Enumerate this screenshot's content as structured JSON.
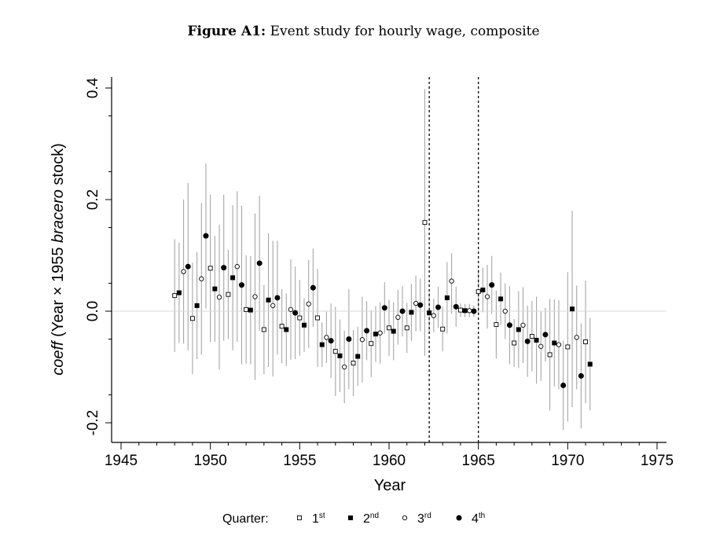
{
  "title": {
    "label": "Figure A1:",
    "text": "Event study for hourly wage, composite"
  },
  "chart_data": {
    "type": "scatter",
    "title": "Figure A1: Event study for hourly wage, composite",
    "xlabel": "Year",
    "ylabel": {
      "italic_part": "coeff",
      "middle_part": " (Year × 1955 ",
      "italic_part2": "bracero",
      "end_part": " stock)"
    },
    "xlim": [
      1945,
      1975
    ],
    "ylim": [
      -0.23,
      0.42
    ],
    "x_ticks": [
      1945,
      1950,
      1955,
      1960,
      1965,
      1970,
      1975
    ],
    "x_tick_labels": [
      "1945",
      "1950",
      "1955",
      "1960",
      "1965",
      "1970",
      "1975"
    ],
    "y_ticks": [
      -0.2,
      0.0,
      0.2,
      0.4
    ],
    "y_tick_labels": [
      "-0.2",
      "0.0",
      "0.2",
      "0.4"
    ],
    "reference_line_y": 0,
    "vertical_lines": [
      1962.25,
      1965
    ],
    "grid": false,
    "error_bars": true,
    "legend": {
      "title": "Quarter:",
      "placement": "bottom",
      "entries": [
        {
          "base": "1",
          "sup": "st",
          "marker": "open-square"
        },
        {
          "base": "2",
          "sup": "nd",
          "marker": "filled-square"
        },
        {
          "base": "3",
          "sup": "rd",
          "marker": "open-circle"
        },
        {
          "base": "4",
          "sup": "th",
          "marker": "filled-circle"
        }
      ]
    },
    "points": [
      {
        "year": 1948.0,
        "q": 1,
        "y": 0.028,
        "lo": -0.073,
        "hi": 0.129
      },
      {
        "year": 1948.25,
        "q": 2,
        "y": 0.033,
        "lo": -0.057,
        "hi": 0.123
      },
      {
        "year": 1948.5,
        "q": 3,
        "y": 0.071,
        "lo": -0.058,
        "hi": 0.2
      },
      {
        "year": 1948.75,
        "q": 4,
        "y": 0.08,
        "lo": -0.07,
        "hi": 0.23
      },
      {
        "year": 1949.0,
        "q": 1,
        "y": -0.013,
        "lo": -0.113,
        "hi": 0.087
      },
      {
        "year": 1949.25,
        "q": 2,
        "y": 0.01,
        "lo": -0.086,
        "hi": 0.106
      },
      {
        "year": 1949.5,
        "q": 3,
        "y": 0.058,
        "lo": -0.078,
        "hi": 0.194
      },
      {
        "year": 1949.75,
        "q": 4,
        "y": 0.135,
        "lo": 0.005,
        "hi": 0.265
      },
      {
        "year": 1950.0,
        "q": 1,
        "y": 0.077,
        "lo": -0.055,
        "hi": 0.209
      },
      {
        "year": 1950.25,
        "q": 2,
        "y": 0.04,
        "lo": -0.055,
        "hi": 0.135
      },
      {
        "year": 1950.5,
        "q": 3,
        "y": 0.025,
        "lo": -0.105,
        "hi": 0.155
      },
      {
        "year": 1950.75,
        "q": 4,
        "y": 0.078,
        "lo": -0.053,
        "hi": 0.209
      },
      {
        "year": 1951.0,
        "q": 1,
        "y": 0.03,
        "lo": -0.05,
        "hi": 0.11
      },
      {
        "year": 1951.25,
        "q": 2,
        "y": 0.06,
        "lo": -0.07,
        "hi": 0.19
      },
      {
        "year": 1951.5,
        "q": 3,
        "y": 0.08,
        "lo": -0.055,
        "hi": 0.215
      },
      {
        "year": 1951.75,
        "q": 4,
        "y": 0.047,
        "lo": -0.095,
        "hi": 0.189
      },
      {
        "year": 1952.0,
        "q": 1,
        "y": 0.003,
        "lo": -0.094,
        "hi": 0.1
      },
      {
        "year": 1952.25,
        "q": 2,
        "y": 0.002,
        "lo": -0.095,
        "hi": 0.099
      },
      {
        "year": 1952.5,
        "q": 3,
        "y": 0.026,
        "lo": -0.123,
        "hi": 0.175
      },
      {
        "year": 1952.75,
        "q": 4,
        "y": 0.086,
        "lo": -0.035,
        "hi": 0.207
      },
      {
        "year": 1953.0,
        "q": 1,
        "y": -0.033,
        "lo": -0.113,
        "hi": 0.047
      },
      {
        "year": 1953.25,
        "q": 2,
        "y": 0.02,
        "lo": -0.1,
        "hi": 0.14
      },
      {
        "year": 1953.5,
        "q": 3,
        "y": 0.01,
        "lo": -0.117,
        "hi": 0.126
      },
      {
        "year": 1953.75,
        "q": 4,
        "y": 0.024,
        "lo": -0.078,
        "hi": 0.126
      },
      {
        "year": 1954.0,
        "q": 1,
        "y": -0.027,
        "lo": -0.093,
        "hi": 0.039
      },
      {
        "year": 1954.25,
        "q": 2,
        "y": -0.033,
        "lo": -0.098,
        "hi": 0.032
      },
      {
        "year": 1954.5,
        "q": 3,
        "y": 0.003,
        "lo": -0.087,
        "hi": 0.093
      },
      {
        "year": 1954.75,
        "q": 4,
        "y": -0.003,
        "lo": -0.086,
        "hi": 0.08
      },
      {
        "year": 1955.0,
        "q": 1,
        "y": -0.012,
        "lo": -0.08,
        "hi": 0.056
      },
      {
        "year": 1955.25,
        "q": 2,
        "y": -0.025,
        "lo": -0.073,
        "hi": 0.023
      },
      {
        "year": 1955.5,
        "q": 3,
        "y": 0.013,
        "lo": -0.066,
        "hi": 0.092
      },
      {
        "year": 1955.75,
        "q": 4,
        "y": 0.042,
        "lo": -0.028,
        "hi": 0.112
      },
      {
        "year": 1956.0,
        "q": 1,
        "y": -0.012,
        "lo": -0.1,
        "hi": 0.076
      },
      {
        "year": 1956.25,
        "q": 2,
        "y": -0.06,
        "lo": -0.1,
        "hi": -0.02
      },
      {
        "year": 1956.5,
        "q": 3,
        "y": -0.047,
        "lo": -0.093,
        "hi": -0.001
      },
      {
        "year": 1956.75,
        "q": 4,
        "y": -0.053,
        "lo": -0.12,
        "hi": 0.014
      },
      {
        "year": 1957.0,
        "q": 1,
        "y": -0.072,
        "lo": -0.152,
        "hi": 0.008
      },
      {
        "year": 1957.25,
        "q": 2,
        "y": -0.08,
        "lo": -0.145,
        "hi": -0.015
      },
      {
        "year": 1957.5,
        "q": 3,
        "y": -0.1,
        "lo": -0.165,
        "hi": -0.035
      },
      {
        "year": 1957.75,
        "q": 4,
        "y": -0.05,
        "lo": -0.14,
        "hi": 0.04
      },
      {
        "year": 1958.0,
        "q": 1,
        "y": -0.093,
        "lo": -0.152,
        "hi": -0.034
      },
      {
        "year": 1958.25,
        "q": 2,
        "y": -0.081,
        "lo": -0.134,
        "hi": -0.028
      },
      {
        "year": 1958.5,
        "q": 3,
        "y": -0.051,
        "lo": -0.128,
        "hi": 0.026
      },
      {
        "year": 1958.75,
        "q": 4,
        "y": -0.035,
        "lo": -0.088,
        "hi": 0.018
      },
      {
        "year": 1959.0,
        "q": 1,
        "y": -0.058,
        "lo": -0.118,
        "hi": 0.002
      },
      {
        "year": 1959.25,
        "q": 2,
        "y": -0.041,
        "lo": -0.091,
        "hi": 0.009
      },
      {
        "year": 1959.5,
        "q": 3,
        "y": -0.039,
        "lo": -0.094,
        "hi": 0.016
      },
      {
        "year": 1959.75,
        "q": 4,
        "y": 0.006,
        "lo": -0.04,
        "hi": 0.052
      },
      {
        "year": 1960.0,
        "q": 1,
        "y": -0.03,
        "lo": -0.08,
        "hi": 0.02
      },
      {
        "year": 1960.25,
        "q": 2,
        "y": -0.036,
        "lo": -0.088,
        "hi": 0.016
      },
      {
        "year": 1960.5,
        "q": 3,
        "y": -0.011,
        "lo": -0.06,
        "hi": 0.038
      },
      {
        "year": 1960.75,
        "q": 4,
        "y": 0.0,
        "lo": -0.045,
        "hi": 0.045
      },
      {
        "year": 1961.0,
        "q": 1,
        "y": -0.03,
        "lo": -0.075,
        "hi": 0.015
      },
      {
        "year": 1961.25,
        "q": 2,
        "y": -0.002,
        "lo": -0.053,
        "hi": 0.049
      },
      {
        "year": 1961.5,
        "q": 3,
        "y": 0.014,
        "lo": -0.036,
        "hi": 0.064
      },
      {
        "year": 1961.75,
        "q": 4,
        "y": 0.011,
        "lo": -0.036,
        "hi": 0.058
      },
      {
        "year": 1962.0,
        "q": 1,
        "y": 0.159,
        "lo": -0.08,
        "hi": 0.398
      },
      {
        "year": 1962.25,
        "q": 2,
        "y": -0.003,
        "lo": -0.04,
        "hi": 0.034
      },
      {
        "year": 1962.5,
        "q": 3,
        "y": -0.008,
        "lo": -0.038,
        "hi": 0.022
      },
      {
        "year": 1962.75,
        "q": 4,
        "y": 0.007,
        "lo": -0.03,
        "hi": 0.044
      },
      {
        "year": 1963.0,
        "q": 1,
        "y": -0.032,
        "lo": -0.072,
        "hi": 0.008
      },
      {
        "year": 1963.25,
        "q": 2,
        "y": 0.024,
        "lo": -0.04,
        "hi": 0.088
      },
      {
        "year": 1963.5,
        "q": 3,
        "y": 0.054,
        "lo": -0.005,
        "hi": 0.104
      },
      {
        "year": 1963.75,
        "q": 4,
        "y": 0.008,
        "lo": -0.028,
        "hi": 0.044
      },
      {
        "year": 1964.0,
        "q": 1,
        "y": 0.002,
        "lo": -0.01,
        "hi": 0.014
      },
      {
        "year": 1964.25,
        "q": 2,
        "y": 0.001,
        "lo": -0.011,
        "hi": 0.013
      },
      {
        "year": 1964.5,
        "q": 3,
        "y": 0.001,
        "lo": -0.011,
        "hi": 0.013
      },
      {
        "year": 1964.75,
        "q": 4,
        "y": 0.0,
        "lo": -0.01,
        "hi": 0.01
      },
      {
        "year": 1965.0,
        "q": 1,
        "y": 0.035,
        "lo": -0.005,
        "hi": 0.075
      },
      {
        "year": 1965.25,
        "q": 2,
        "y": 0.038,
        "lo": -0.002,
        "hi": 0.078
      },
      {
        "year": 1965.5,
        "q": 3,
        "y": 0.026,
        "lo": -0.031,
        "hi": 0.083
      },
      {
        "year": 1965.75,
        "q": 4,
        "y": 0.047,
        "lo": -0.005,
        "hi": 0.099
      },
      {
        "year": 1966.0,
        "q": 1,
        "y": -0.024,
        "lo": -0.085,
        "hi": 0.037
      },
      {
        "year": 1966.25,
        "q": 2,
        "y": 0.022,
        "lo": -0.025,
        "hi": 0.069
      },
      {
        "year": 1966.5,
        "q": 3,
        "y": 0.0,
        "lo": -0.05,
        "hi": 0.05
      },
      {
        "year": 1966.75,
        "q": 4,
        "y": -0.025,
        "lo": -0.095,
        "hi": 0.045
      },
      {
        "year": 1967.0,
        "q": 1,
        "y": -0.057,
        "lo": -0.1,
        "hi": -0.014
      },
      {
        "year": 1967.25,
        "q": 2,
        "y": -0.033,
        "lo": -0.102,
        "hi": 0.036
      },
      {
        "year": 1967.5,
        "q": 3,
        "y": -0.025,
        "lo": -0.093,
        "hi": 0.043
      },
      {
        "year": 1967.75,
        "q": 4,
        "y": -0.054,
        "lo": -0.118,
        "hi": 0.01
      },
      {
        "year": 1968.0,
        "q": 1,
        "y": -0.045,
        "lo": -0.108,
        "hi": 0.018
      },
      {
        "year": 1968.25,
        "q": 2,
        "y": -0.052,
        "lo": -0.13,
        "hi": 0.026
      },
      {
        "year": 1968.5,
        "q": 3,
        "y": -0.063,
        "lo": -0.125,
        "hi": -0.001
      },
      {
        "year": 1968.75,
        "q": 4,
        "y": -0.042,
        "lo": -0.09,
        "hi": 0.006
      },
      {
        "year": 1969.0,
        "q": 1,
        "y": -0.078,
        "lo": -0.178,
        "hi": 0.022
      },
      {
        "year": 1969.25,
        "q": 2,
        "y": -0.057,
        "lo": -0.135,
        "hi": 0.021
      },
      {
        "year": 1969.5,
        "q": 3,
        "y": -0.06,
        "lo": -0.14,
        "hi": 0.02
      },
      {
        "year": 1969.75,
        "q": 4,
        "y": -0.133,
        "lo": -0.213,
        "hi": -0.053
      },
      {
        "year": 1970.0,
        "q": 1,
        "y": -0.064,
        "lo": -0.198,
        "hi": 0.07
      },
      {
        "year": 1970.25,
        "q": 2,
        "y": 0.004,
        "lo": -0.172,
        "hi": 0.18
      },
      {
        "year": 1970.5,
        "q": 3,
        "y": -0.047,
        "lo": -0.14,
        "hi": 0.046
      },
      {
        "year": 1970.75,
        "q": 4,
        "y": -0.116,
        "lo": -0.21,
        "hi": -0.022
      },
      {
        "year": 1971.0,
        "q": 1,
        "y": -0.055,
        "lo": -0.165,
        "hi": 0.055
      },
      {
        "year": 1971.25,
        "q": 2,
        "y": -0.095,
        "lo": -0.178,
        "hi": -0.012
      }
    ]
  }
}
